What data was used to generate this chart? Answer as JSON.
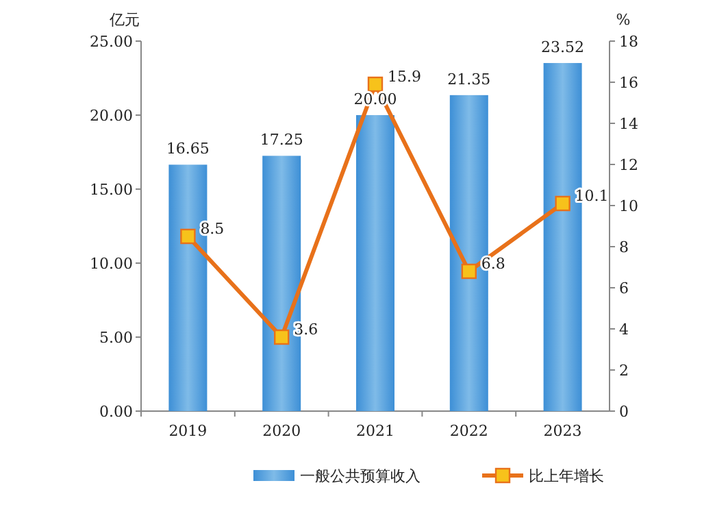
{
  "chart_data": {
    "type": "bar",
    "ylabel": "亿元",
    "y2label": "%",
    "categories": [
      "2019",
      "2020",
      "2021",
      "2022",
      "2023"
    ],
    "series": [
      {
        "name": "一般公共预算收入",
        "color": "#3d8fd6",
        "values": [
          16.65,
          17.25,
          20.0,
          21.35,
          23.52
        ],
        "value_labels": [
          "16.65",
          "17.25",
          "20.00",
          "21.35",
          "23.52"
        ]
      },
      {
        "name": "比上年增长",
        "type": "line",
        "axis": "y2",
        "color": "#e8711a",
        "marker": "square",
        "values": [
          8.5,
          3.6,
          15.9,
          6.8,
          10.1
        ],
        "value_labels": [
          "8.5",
          "3.6",
          "15.9",
          "6.8",
          "10.1"
        ]
      }
    ],
    "ylim": [
      0,
      25
    ],
    "yticks": [
      {
        "value": 0,
        "label": "0.00"
      },
      {
        "value": 5,
        "label": "5.00"
      },
      {
        "value": 10,
        "label": "10.00"
      },
      {
        "value": 15,
        "label": "15.00"
      },
      {
        "value": 20,
        "label": "20.00"
      },
      {
        "value": 25,
        "label": "25.00"
      }
    ],
    "y2lim": [
      0,
      18
    ],
    "y2ticks": [
      0,
      2,
      4,
      6,
      8,
      10,
      12,
      14,
      16,
      18
    ],
    "grid": false,
    "legend": "bottom"
  }
}
